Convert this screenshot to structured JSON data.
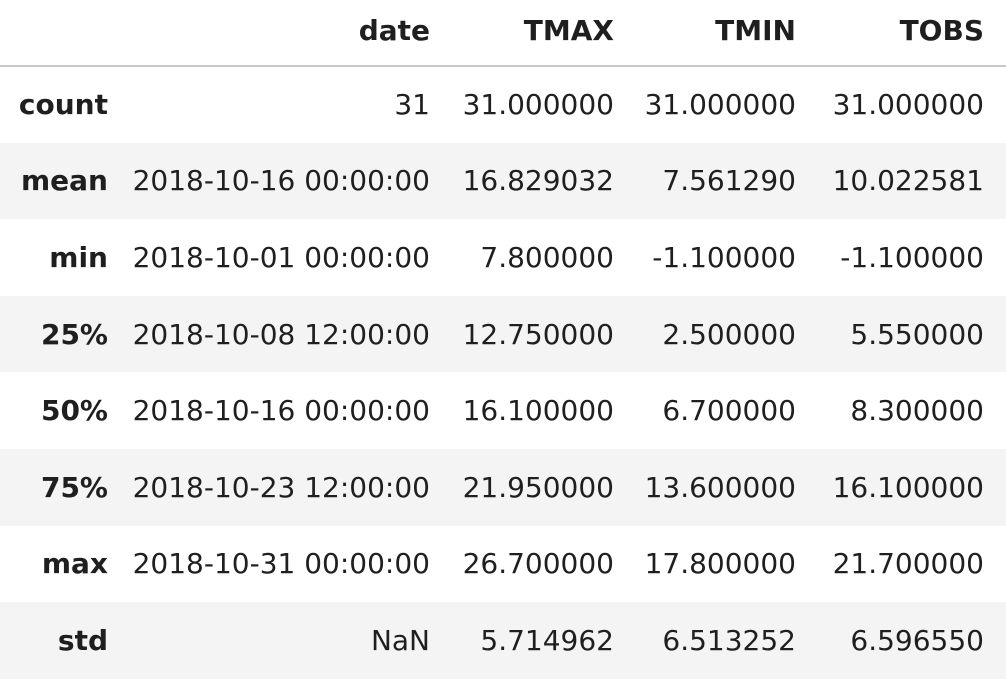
{
  "table": {
    "index_header": "",
    "columns": [
      "date",
      "TMAX",
      "TMIN",
      "TOBS"
    ],
    "rows": [
      {
        "label": "count",
        "values": [
          "31",
          "31.000000",
          "31.000000",
          "31.000000"
        ]
      },
      {
        "label": "mean",
        "values": [
          "2018-10-16 00:00:00",
          "16.829032",
          "7.561290",
          "10.022581"
        ]
      },
      {
        "label": "min",
        "values": [
          "2018-10-01 00:00:00",
          "7.800000",
          "-1.100000",
          "-1.100000"
        ]
      },
      {
        "label": "25%",
        "values": [
          "2018-10-08 12:00:00",
          "12.750000",
          "2.500000",
          "5.550000"
        ]
      },
      {
        "label": "50%",
        "values": [
          "2018-10-16 00:00:00",
          "16.100000",
          "6.700000",
          "8.300000"
        ]
      },
      {
        "label": "75%",
        "values": [
          "2018-10-23 12:00:00",
          "21.950000",
          "13.600000",
          "16.100000"
        ]
      },
      {
        "label": "max",
        "values": [
          "2018-10-31 00:00:00",
          "26.700000",
          "17.800000",
          "21.700000"
        ]
      },
      {
        "label": "std",
        "values": [
          "NaN",
          "5.714962",
          "6.513252",
          "6.596550"
        ]
      }
    ]
  }
}
